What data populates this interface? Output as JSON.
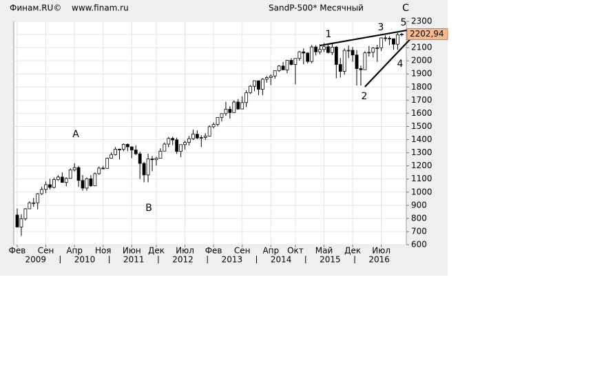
{
  "chart_data": {
    "type": "candlestick",
    "source": "Финам.RU©",
    "site": "www.finam.ru",
    "title": "SandP-500* Месячный",
    "categories": [
      "Фев",
      null,
      null,
      null,
      null,
      null,
      null,
      "Сен",
      null,
      null,
      null,
      null,
      null,
      null,
      "Апр",
      null,
      null,
      null,
      null,
      null,
      null,
      "Ноя",
      null,
      null,
      null,
      null,
      null,
      null,
      "Июн",
      null,
      null,
      null,
      null,
      null,
      "Дек",
      null,
      null,
      null,
      null,
      null,
      null,
      "Июл",
      null,
      null,
      null,
      null,
      null,
      null,
      "Фев",
      null,
      null,
      null,
      null,
      null,
      null,
      "Сен",
      null,
      null,
      null,
      null,
      null,
      null,
      "Апр",
      null,
      null,
      null,
      null,
      null,
      "Окт",
      null,
      null,
      null,
      null,
      null,
      null,
      "Май",
      null,
      null,
      null,
      null,
      null,
      null,
      "Дек",
      null,
      null,
      null,
      null,
      null,
      null,
      "Июл",
      null,
      null,
      null,
      null,
      null
    ],
    "years": [
      "2009",
      "2010",
      "2011",
      "2012",
      "2013",
      "2014",
      "2015",
      "2016"
    ],
    "open": [
      826,
      735,
      798,
      873,
      919,
      919,
      988,
      1021,
      1057,
      1036,
      1096,
      1115,
      1074,
      1105,
      1169,
      1187,
      1089,
      1031,
      1102,
      1049,
      1141,
      1183,
      1181,
      1258,
      1286,
      1327,
      1326,
      1364,
      1345,
      1321,
      1292,
      1219,
      1131,
      1253,
      1247,
      1258,
      1312,
      1366,
      1409,
      1398,
      1310,
      1362,
      1379,
      1407,
      1441,
      1412,
      1416,
      1426,
      1498,
      1515,
      1569,
      1598,
      1631,
      1606,
      1686,
      1633,
      1682,
      1757,
      1806,
      1848,
      1783,
      1860,
      1872,
      1884,
      1924,
      1960,
      1931,
      2003,
      1972,
      2018,
      2068,
      2059,
      1995,
      2105,
      2068,
      2086,
      2107,
      2063,
      2104,
      1972,
      1920,
      2079,
      2080,
      2044,
      1940,
      1932,
      2060,
      2065,
      2097,
      2099,
      2174,
      2171,
      2168,
      2126,
      2199
    ],
    "high": [
      876,
      832,
      878,
      930,
      956,
      993,
      1040,
      1081,
      1102,
      1111,
      1130,
      1151,
      1113,
      1181,
      1220,
      1200,
      1131,
      1113,
      1130,
      1150,
      1196,
      1200,
      1263,
      1303,
      1344,
      1332,
      1371,
      1371,
      1345,
      1357,
      1308,
      1230,
      1293,
      1275,
      1270,
      1334,
      1378,
      1420,
      1422,
      1415,
      1364,
      1392,
      1427,
      1475,
      1471,
      1434,
      1448,
      1509,
      1531,
      1570,
      1598,
      1688,
      1654,
      1698,
      1709,
      1730,
      1776,
      1814,
      1850,
      1850,
      1868,
      1884,
      1897,
      1925,
      1968,
      1991,
      2006,
      2020,
      2019,
      2075,
      2094,
      2065,
      2120,
      2118,
      2126,
      2135,
      2130,
      2133,
      2113,
      2021,
      2094,
      2117,
      2105,
      2082,
      1963,
      2073,
      2112,
      2104,
      2121,
      2178,
      2194,
      2187,
      2170,
      2214,
      2212
    ],
    "low": [
      731,
      667,
      784,
      879,
      888,
      869,
      979,
      992,
      1020,
      1029,
      1086,
      1072,
      1045,
      1105,
      1157,
      1040,
      1011,
      1011,
      1040,
      1048,
      1132,
      1174,
      1179,
      1262,
      1279,
      1249,
      1312,
      1312,
      1258,
      1282,
      1101,
      1075,
      1075,
      1159,
      1202,
      1259,
      1311,
      1341,
      1357,
      1291,
      1267,
      1325,
      1355,
      1397,
      1403,
      1343,
      1398,
      1426,
      1485,
      1501,
      1537,
      1581,
      1560,
      1604,
      1628,
      1633,
      1647,
      1746,
      1768,
      1738,
      1738,
      1834,
      1815,
      1863,
      1915,
      1931,
      1905,
      1965,
      1821,
      2001,
      1973,
      1981,
      1981,
      2040,
      2049,
      2068,
      2056,
      2044,
      1867,
      1872,
      1893,
      2020,
      1993,
      1812,
      1811,
      1931,
      2033,
      2026,
      1992,
      2074,
      2148,
      2120,
      2084,
      2084,
      2187
    ],
    "close": [
      735,
      798,
      873,
      919,
      919,
      988,
      1021,
      1057,
      1036,
      1096,
      1115,
      1074,
      1105,
      1169,
      1187,
      1089,
      1031,
      1102,
      1049,
      1141,
      1183,
      1181,
      1258,
      1286,
      1327,
      1326,
      1364,
      1345,
      1321,
      1292,
      1219,
      1131,
      1253,
      1247,
      1258,
      1312,
      1366,
      1409,
      1398,
      1310,
      1362,
      1379,
      1407,
      1441,
      1412,
      1416,
      1426,
      1498,
      1515,
      1569,
      1598,
      1631,
      1606,
      1686,
      1633,
      1682,
      1757,
      1806,
      1848,
      1783,
      1860,
      1872,
      1884,
      1924,
      1960,
      1931,
      2003,
      1972,
      2018,
      2068,
      2059,
      1995,
      2105,
      2068,
      2086,
      2107,
      2063,
      2104,
      1972,
      1920,
      2079,
      2080,
      2044,
      1940,
      1932,
      2060,
      2065,
      2097,
      2099,
      2174,
      2171,
      2168,
      2126,
      2199,
      2202.94
    ],
    "last_price": {
      "value": 2202.94,
      "label": "2202,94"
    },
    "ylim": [
      600,
      2300
    ],
    "yticks": [
      600,
      700,
      800,
      900,
      1000,
      1100,
      1200,
      1300,
      1400,
      1500,
      1600,
      1700,
      1800,
      1900,
      2000,
      2100,
      2200,
      2300
    ],
    "grid": true,
    "up_color": "#ffffff",
    "down_color": "#000000",
    "price_box_color": "#f7b98f",
    "trendlines": [
      {
        "x": [
          74,
          97
        ],
        "y": [
          2116,
          2242
        ]
      },
      {
        "x": [
          85,
          97
        ],
        "y": [
          1802,
          2195
        ]
      }
    ],
    "annotations": [
      "A",
      "B",
      "C",
      "1",
      "2",
      "3",
      "4",
      "5"
    ]
  }
}
